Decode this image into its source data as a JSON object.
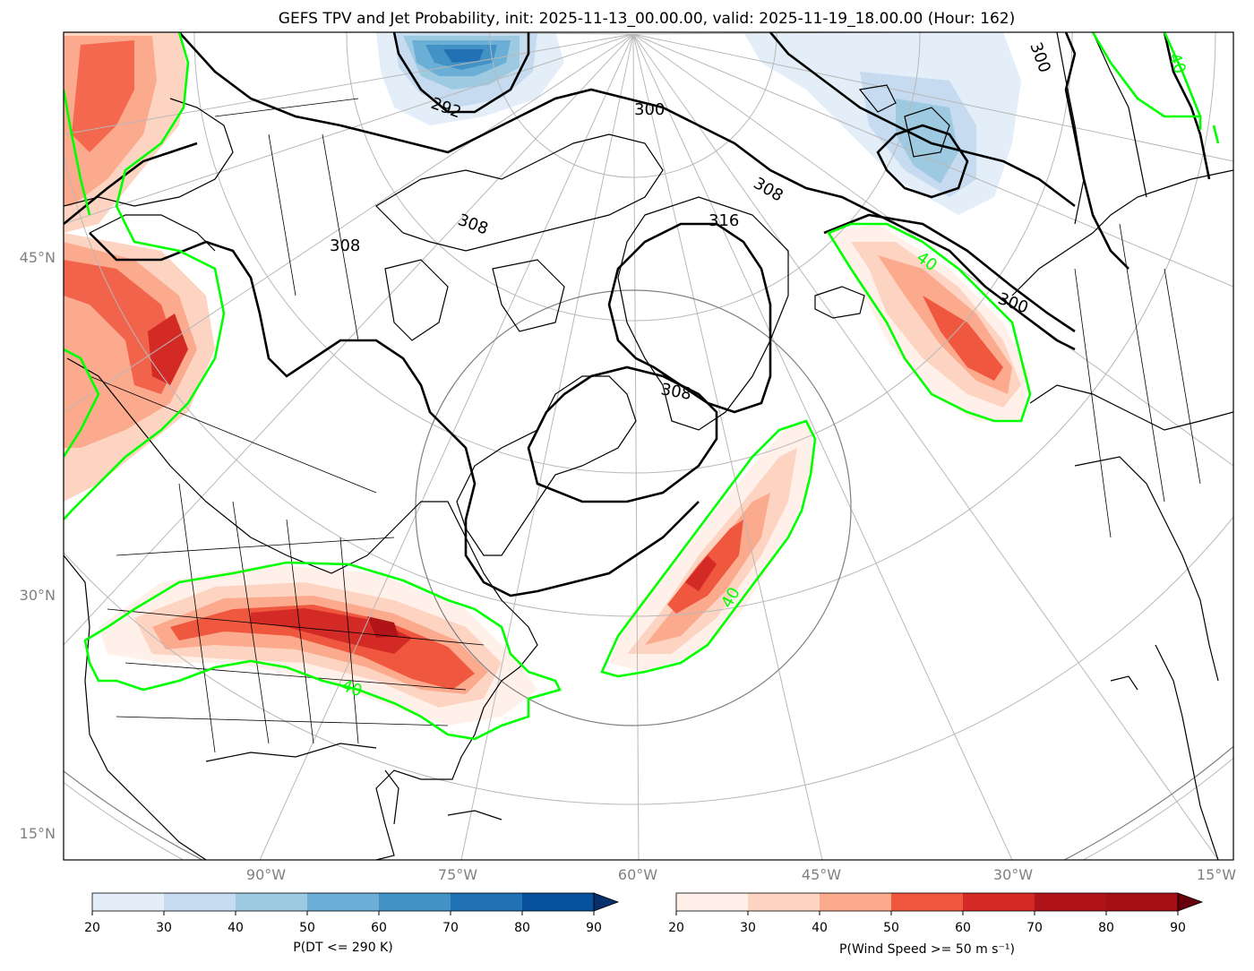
{
  "title": "GEFS TPV and Jet Probability, init: 2025-11-13_00.00.00, valid: 2025-11-19_18.00.00 (Hour: 162)",
  "lat_labels": [
    "45°N",
    "30°N",
    "15°N"
  ],
  "lon_labels": [
    "90°W",
    "75°W",
    "60°W",
    "45°W",
    "30°W",
    "15°W"
  ],
  "dt_contour_labels": [
    "292",
    "300",
    "300",
    "308",
    "308",
    "308",
    "308",
    "316",
    "300"
  ],
  "jet_contour_labels": [
    "40",
    "40",
    "40",
    "40"
  ],
  "colorbar_dt": {
    "label": "P(DT <= 290 K)",
    "ticks": [
      "20",
      "30",
      "40",
      "50",
      "60",
      "70",
      "80",
      "90"
    ],
    "colors": [
      "#e3eef9",
      "#c6dbef",
      "#9ecae1",
      "#6baed6",
      "#4292c6",
      "#2171b5",
      "#08519c",
      "#08306b"
    ]
  },
  "colorbar_wind": {
    "label": "P(Wind Speed >= 50 m s⁻¹)",
    "ticks": [
      "20",
      "30",
      "40",
      "50",
      "60",
      "70",
      "80",
      "90"
    ],
    "colors": [
      "#fff0ea",
      "#fdd4c2",
      "#fcaa8e",
      "#f0573f",
      "#d42a26",
      "#b01419",
      "#a50f15",
      "#67000d"
    ]
  },
  "colors": {
    "jet_contour": "#00ff00",
    "dt_contour": "#000000",
    "graticule": "#b8b8b8",
    "label_gray": "#808080"
  }
}
